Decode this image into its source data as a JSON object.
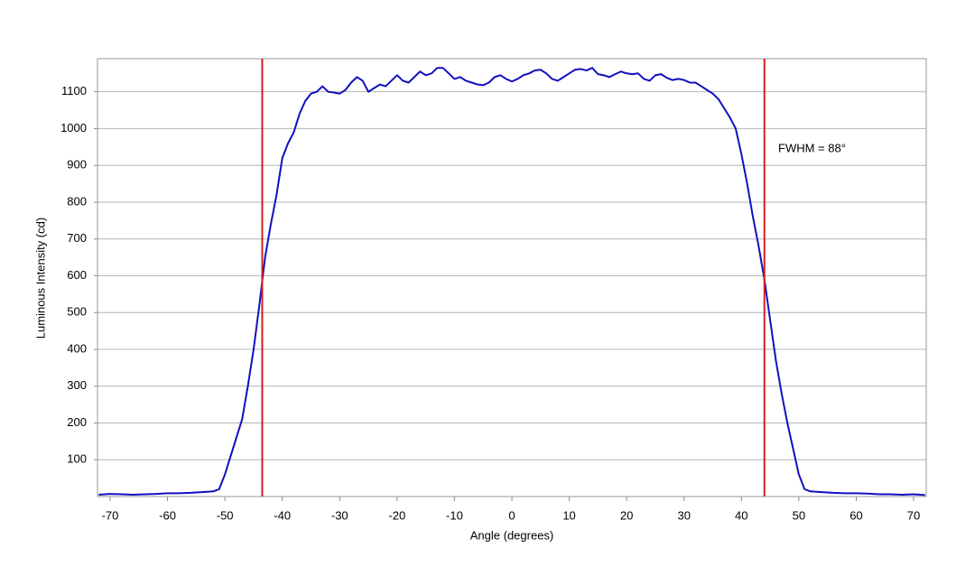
{
  "chart_data": {
    "type": "line",
    "x_label": "Angle (degrees)",
    "y_label": "Luminous Intensity (cd)",
    "annotation": "FWHM = 88°",
    "xlim": [
      -72.2,
      72.2
    ],
    "ylim": [
      0,
      1190
    ],
    "xticks": [
      -70,
      -60,
      -50,
      -40,
      -30,
      -20,
      -10,
      0,
      10,
      20,
      30,
      40,
      50,
      60,
      70
    ],
    "yticks": [
      100,
      200,
      300,
      400,
      500,
      600,
      700,
      800,
      900,
      1000,
      1100
    ],
    "grid": true,
    "vlines": [
      -43.5,
      44
    ],
    "vline_color": "#d62020",
    "x": [
      -72,
      -70,
      -68,
      -66,
      -64,
      -62,
      -60,
      -58,
      -56,
      -54,
      -52,
      -51,
      -50,
      -49,
      -48,
      -47,
      -46,
      -45,
      -44,
      -43,
      -42,
      -41,
      -40,
      -39,
      -38,
      -37,
      -36,
      -35,
      -34,
      -33,
      -32,
      -31,
      -30,
      -29,
      -28,
      -27,
      -26,
      -25,
      -24,
      -23,
      -22,
      -21,
      -20,
      -19,
      -18,
      -17,
      -16,
      -15,
      -14,
      -13,
      -12,
      -11,
      -10,
      -9,
      -8,
      -7,
      -6,
      -5,
      -4,
      -3,
      -2,
      -1,
      0,
      1,
      2,
      3,
      4,
      5,
      6,
      7,
      8,
      9,
      10,
      11,
      12,
      13,
      14,
      15,
      16,
      17,
      18,
      19,
      20,
      21,
      22,
      23,
      24,
      25,
      26,
      27,
      28,
      29,
      30,
      31,
      32,
      33,
      34,
      35,
      36,
      37,
      38,
      39,
      40,
      41,
      42,
      43,
      44,
      45,
      46,
      47,
      48,
      49,
      50,
      51,
      52,
      54,
      56,
      58,
      60,
      62,
      64,
      66,
      68,
      70,
      72
    ],
    "series": [
      {
        "name": "Luminous Intensity",
        "color": "#1010c0",
        "values": [
          5,
          7,
          6,
          5,
          6,
          7,
          9,
          9,
          10,
          12,
          14,
          20,
          60,
          110,
          160,
          210,
          300,
          400,
          520,
          650,
          740,
          820,
          920,
          960,
          990,
          1040,
          1075,
          1095,
          1100,
          1115,
          1100,
          1098,
          1095,
          1105,
          1125,
          1140,
          1130,
          1100,
          1110,
          1120,
          1115,
          1130,
          1145,
          1130,
          1125,
          1140,
          1155,
          1145,
          1150,
          1165,
          1165,
          1150,
          1135,
          1140,
          1130,
          1125,
          1120,
          1118,
          1125,
          1140,
          1145,
          1135,
          1128,
          1135,
          1145,
          1150,
          1158,
          1160,
          1150,
          1135,
          1130,
          1140,
          1150,
          1160,
          1162,
          1158,
          1165,
          1148,
          1145,
          1140,
          1148,
          1155,
          1150,
          1148,
          1150,
          1135,
          1130,
          1145,
          1148,
          1138,
          1132,
          1135,
          1132,
          1125,
          1125,
          1115,
          1105,
          1095,
          1080,
          1055,
          1030,
          1000,
          930,
          850,
          760,
          680,
          590,
          480,
          370,
          280,
          200,
          130,
          60,
          20,
          14,
          12,
          10,
          9,
          9,
          8,
          6,
          6,
          5,
          6,
          4
        ]
      }
    ]
  }
}
